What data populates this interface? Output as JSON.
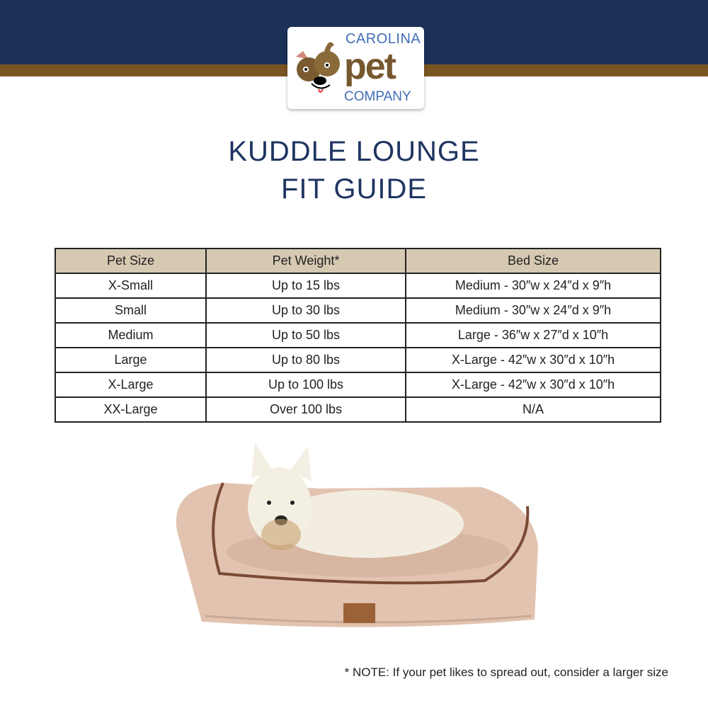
{
  "logo": {
    "line1": "CAROLINA",
    "line2": "pet",
    "line3": "COMPANY"
  },
  "title": {
    "line1": "KUDDLE LOUNGE",
    "line2": "FIT GUIDE"
  },
  "table": {
    "headers": [
      "Pet Size",
      "Pet Weight*",
      "Bed Size"
    ],
    "rows": [
      [
        "X-Small",
        "Up to 15 lbs",
        "Medium - 30″w x 24″d x 9″h"
      ],
      [
        "Small",
        "Up to 30 lbs",
        "Medium - 30″w x 24″d x 9″h"
      ],
      [
        "Medium",
        "Up to 50 lbs",
        "Large - 36″w x 27″d x 10″h"
      ],
      [
        "Large",
        "Up to 80 lbs",
        "X-Large - 42″w x 30″d x 10″h"
      ],
      [
        "X-Large",
        "Up to 100 lbs",
        "X-Large - 42″w x 30″d x 10″h"
      ],
      [
        "XX-Large",
        "Over 100 lbs",
        "N/A"
      ]
    ]
  },
  "note": "* NOTE: If your pet likes to spread out, consider a larger size",
  "colors": {
    "navy": "#1b3158",
    "brown": "#7a5522",
    "header": "#d6c9b2"
  }
}
